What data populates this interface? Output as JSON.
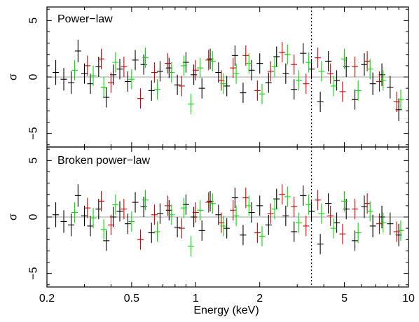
{
  "chart_data": {
    "type": "scatter",
    "shared_x": {
      "label": "Energy (keV)",
      "scale": "log",
      "range": [
        0.2,
        10
      ],
      "ticks": [
        0.2,
        0.5,
        1,
        2,
        5,
        10
      ],
      "tick_labels": [
        "0.2",
        "0.5",
        "1",
        "2",
        "5",
        "10"
      ]
    },
    "reference_line_x": 3.5,
    "series_colors": [
      "#000000",
      "#d40000",
      "#00e000"
    ],
    "panels": [
      {
        "title": "Power−law",
        "ylabel": "σ",
        "ylim": [
          -6.2,
          6.2
        ],
        "yticks": [
          -5,
          0,
          5
        ],
        "ytick_labels": [
          "−5",
          "0",
          "5"
        ],
        "zero_line": true,
        "series": [
          {
            "color": "#000000",
            "x": [
              0.22,
              0.24,
              0.26,
              0.28,
              0.3,
              0.32,
              0.35,
              0.38,
              0.41,
              0.44,
              0.48,
              0.52,
              0.57,
              0.62,
              0.68,
              0.75,
              0.82,
              0.9,
              0.98,
              1.07,
              1.17,
              1.28,
              1.4,
              1.53,
              1.67,
              1.83,
              2.0,
              2.2,
              2.4,
              2.65,
              2.9,
              3.2,
              3.5,
              3.85,
              4.2,
              4.6,
              5.1,
              5.6,
              6.2,
              6.8,
              7.5,
              8.2,
              9.0
            ],
            "y": [
              0.4,
              -0.2,
              -0.5,
              2.3,
              0.3,
              -0.6,
              0.9,
              -1.8,
              0.2,
              0.7,
              -0.4,
              1.5,
              1.1,
              -1.2,
              0.5,
              0.8,
              -0.7,
              1.3,
              0.2,
              -1.0,
              1.6,
              0.4,
              -0.8,
              1.9,
              -1.4,
              0.6,
              1.2,
              -0.5,
              1.8,
              0.3,
              -1.1,
              2.1,
              0.7,
              -2.2,
              1.4,
              -0.3,
              0.9,
              -2.0,
              1.1,
              -0.6,
              0.2,
              -0.9,
              -2.9
            ],
            "err": [
              1.1,
              1.0,
              1.0,
              1.0,
              0.9,
              0.9,
              0.9,
              0.9,
              0.9,
              0.9,
              0.9,
              0.9,
              0.9,
              0.9,
              0.9,
              0.9,
              0.9,
              0.9,
              0.9,
              0.9,
              0.9,
              0.9,
              0.9,
              0.9,
              0.9,
              0.9,
              0.9,
              0.9,
              0.9,
              0.9,
              0.9,
              0.9,
              0.9,
              0.9,
              0.9,
              0.9,
              0.9,
              0.9,
              1.0,
              1.0,
              1.0,
              1.0,
              1.0
            ]
          },
          {
            "color": "#d40000",
            "x": [
              0.31,
              0.36,
              0.4,
              0.46,
              0.55,
              0.64,
              0.74,
              0.86,
              1.0,
              1.15,
              1.32,
              1.5,
              1.72,
              1.95,
              2.25,
              2.55,
              2.9,
              3.3,
              3.75,
              4.3,
              4.9,
              5.6,
              6.4,
              7.3,
              8.8
            ],
            "y": [
              1.0,
              1.6,
              -0.5,
              0.9,
              -1.9,
              0.4,
              1.2,
              -0.8,
              0.6,
              1.5,
              -0.3,
              0.8,
              1.9,
              -1.2,
              0.5,
              2.2,
              1.1,
              -0.6,
              1.7,
              0.3,
              -1.3,
              0.9,
              1.4,
              -0.4,
              -2.2
            ],
            "err": [
              0.9,
              0.9,
              0.9,
              0.9,
              0.9,
              0.9,
              0.9,
              0.9,
              0.9,
              0.9,
              0.9,
              0.9,
              0.9,
              0.9,
              0.9,
              0.9,
              0.9,
              0.9,
              0.9,
              0.9,
              0.9,
              0.9,
              0.9,
              0.9,
              0.9
            ]
          },
          {
            "color": "#00e000",
            "x": [
              0.27,
              0.33,
              0.37,
              0.42,
              0.5,
              0.58,
              0.66,
              0.77,
              0.88,
              0.95,
              1.05,
              1.2,
              1.35,
              1.55,
              1.78,
              2.05,
              2.35,
              2.7,
              3.05,
              3.4,
              3.9,
              4.45,
              5.0,
              5.8,
              6.6,
              7.6,
              9.2
            ],
            "y": [
              0.6,
              0.1,
              -0.9,
              1.3,
              -0.2,
              1.7,
              -1.1,
              0.4,
              1.0,
              -2.4,
              0.8,
              1.4,
              -0.6,
              0.3,
              1.2,
              -1.5,
              0.9,
              2.0,
              -0.3,
              1.3,
              0.5,
              -0.8,
              1.6,
              -1.2,
              0.7,
              -0.3,
              -2.0
            ],
            "err": [
              0.9,
              0.9,
              0.9,
              0.9,
              0.9,
              0.9,
              0.9,
              0.9,
              0.9,
              0.9,
              0.9,
              0.9,
              0.9,
              0.9,
              0.9,
              0.9,
              0.9,
              0.9,
              0.9,
              0.9,
              0.9,
              0.9,
              0.9,
              0.9,
              0.9,
              0.9,
              0.9
            ]
          }
        ]
      },
      {
        "title": "Broken power−law",
        "ylabel": "σ",
        "ylim": [
          -6.2,
          6.2
        ],
        "yticks": [
          -5,
          0,
          5
        ],
        "ytick_labels": [
          "−5",
          "0",
          "5"
        ],
        "zero_line": true,
        "series": [
          {
            "color": "#000000",
            "x": [
              0.22,
              0.24,
              0.26,
              0.28,
              0.3,
              0.32,
              0.35,
              0.38,
              0.41,
              0.44,
              0.48,
              0.52,
              0.57,
              0.62,
              0.68,
              0.75,
              0.82,
              0.9,
              0.98,
              1.07,
              1.17,
              1.28,
              1.4,
              1.53,
              1.67,
              1.83,
              2.0,
              2.2,
              2.4,
              2.65,
              2.9,
              3.2,
              3.5,
              3.85,
              4.2,
              4.6,
              5.1,
              5.6,
              6.2,
              6.8,
              7.5,
              8.2,
              9.0
            ],
            "y": [
              0.2,
              -0.4,
              -0.7,
              1.9,
              0.1,
              -0.8,
              0.7,
              -2.1,
              0.0,
              0.5,
              -0.6,
              1.3,
              0.9,
              -1.4,
              0.3,
              0.6,
              -0.9,
              1.1,
              0.0,
              -1.2,
              1.4,
              0.2,
              -1.0,
              1.7,
              -1.6,
              0.4,
              1.0,
              -0.7,
              1.6,
              0.1,
              -1.3,
              1.9,
              0.5,
              -2.4,
              1.2,
              -0.5,
              0.7,
              -2.1,
              0.9,
              -0.8,
              0.0,
              -0.6,
              -1.6
            ],
            "err": [
              1.1,
              1.0,
              1.0,
              1.0,
              0.9,
              0.9,
              0.9,
              0.9,
              0.9,
              0.9,
              0.9,
              0.9,
              0.9,
              0.9,
              0.9,
              0.9,
              0.9,
              0.9,
              0.9,
              0.9,
              0.9,
              0.9,
              0.9,
              0.9,
              0.9,
              0.9,
              0.9,
              0.9,
              0.9,
              0.9,
              0.9,
              0.9,
              0.9,
              0.9,
              0.9,
              0.9,
              0.9,
              0.9,
              1.0,
              1.0,
              1.0,
              1.0,
              1.0
            ]
          },
          {
            "color": "#d40000",
            "x": [
              0.31,
              0.36,
              0.4,
              0.46,
              0.55,
              0.64,
              0.74,
              0.86,
              1.0,
              1.15,
              1.32,
              1.5,
              1.72,
              1.95,
              2.25,
              2.55,
              2.9,
              3.3,
              3.75,
              4.3,
              4.9,
              5.6,
              6.4,
              7.3,
              8.8
            ],
            "y": [
              0.8,
              1.4,
              -0.7,
              0.7,
              -2.0,
              0.2,
              1.0,
              -1.0,
              0.4,
              1.3,
              -0.5,
              0.6,
              1.7,
              -1.4,
              0.3,
              2.0,
              0.9,
              -0.8,
              1.5,
              0.1,
              -1.5,
              0.7,
              1.2,
              -0.6,
              -1.3
            ],
            "err": [
              0.9,
              0.9,
              0.9,
              0.9,
              0.9,
              0.9,
              0.9,
              0.9,
              0.9,
              0.9,
              0.9,
              0.9,
              0.9,
              0.9,
              0.9,
              0.9,
              0.9,
              0.9,
              0.9,
              0.9,
              0.9,
              0.9,
              0.9,
              0.9,
              0.9
            ]
          },
          {
            "color": "#00e000",
            "x": [
              0.27,
              0.33,
              0.37,
              0.42,
              0.5,
              0.58,
              0.66,
              0.77,
              0.88,
              0.95,
              1.05,
              1.2,
              1.35,
              1.55,
              1.78,
              2.05,
              2.35,
              2.7,
              3.05,
              3.4,
              3.9,
              4.45,
              5.0,
              5.8,
              6.6,
              7.6,
              9.2
            ],
            "y": [
              0.4,
              -0.1,
              -1.1,
              1.1,
              -0.4,
              1.5,
              -1.3,
              0.2,
              0.8,
              -2.6,
              0.6,
              1.2,
              -0.8,
              0.1,
              1.0,
              -1.7,
              0.7,
              1.8,
              -0.5,
              1.1,
              0.3,
              -1.0,
              1.4,
              -1.4,
              0.5,
              -0.5,
              -1.2
            ],
            "err": [
              0.9,
              0.9,
              0.9,
              0.9,
              0.9,
              0.9,
              0.9,
              0.9,
              0.9,
              0.9,
              0.9,
              0.9,
              0.9,
              0.9,
              0.9,
              0.9,
              0.9,
              0.9,
              0.9,
              0.9,
              0.9,
              0.9,
              0.9,
              0.9,
              0.9,
              0.9,
              0.9
            ]
          }
        ]
      }
    ]
  }
}
